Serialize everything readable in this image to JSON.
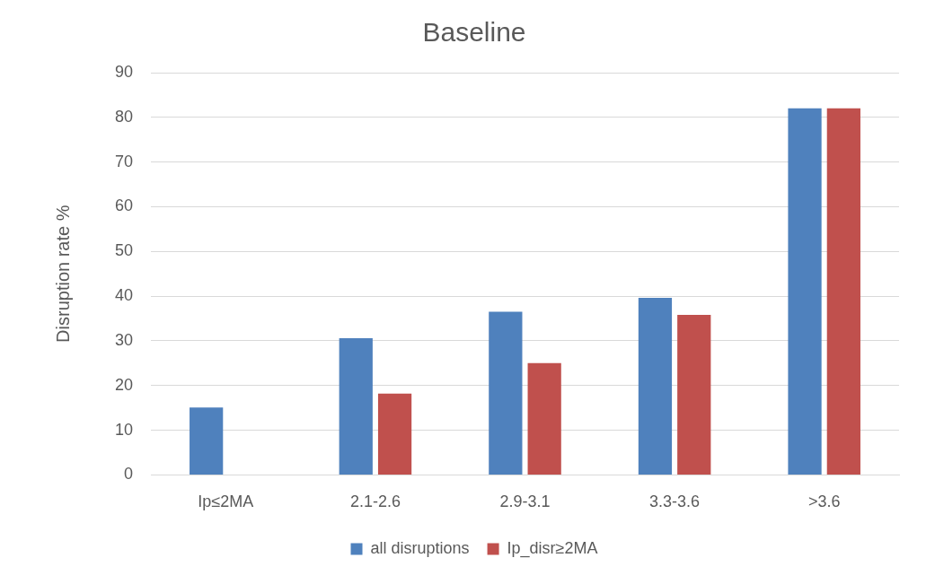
{
  "chart_data": {
    "type": "bar",
    "title": "Baseline",
    "ylabel": "Disruption rate %",
    "categories": [
      "Ip≤2MA",
      "2.1-2.6",
      "2.9-3.1",
      "3.3-3.6",
      ">3.6"
    ],
    "series": [
      {
        "name": "all disruptions",
        "color": "#4f81bd",
        "values": [
          15.1,
          30.6,
          36.5,
          39.6,
          82
        ]
      },
      {
        "name": "Ip_disr≥2MA",
        "color": "#c0504d",
        "values": [
          null,
          18.2,
          25,
          35.8,
          82
        ]
      }
    ],
    "ylim": [
      0,
      90
    ],
    "yticks": [
      0,
      10,
      20,
      30,
      40,
      50,
      60,
      70,
      80,
      90
    ],
    "grid": "y",
    "legend": "bottom"
  }
}
